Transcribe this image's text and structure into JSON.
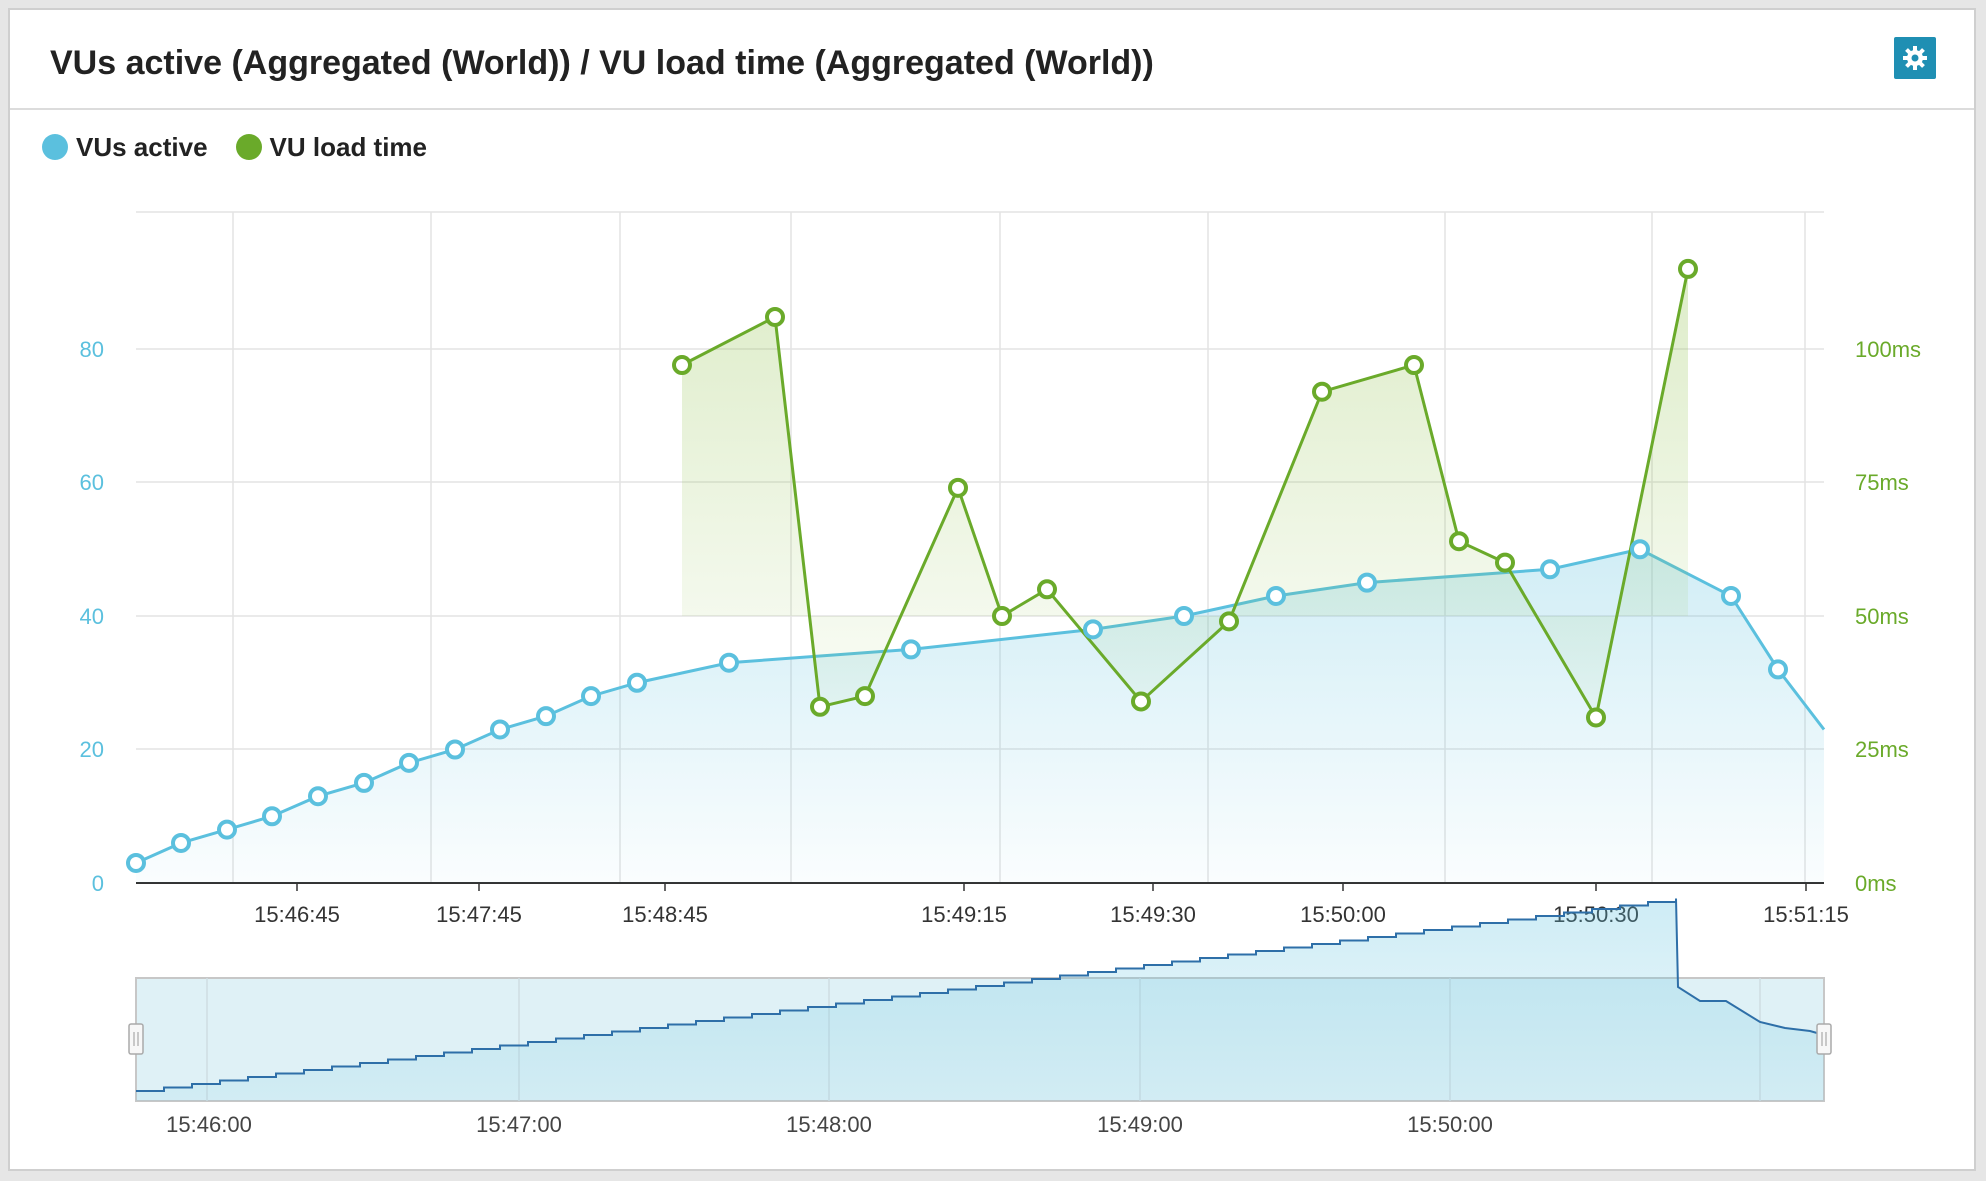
{
  "panel": {
    "title": "VUs active (Aggregated (World)) / VU load time (Aggregated (World))",
    "settings_icon": "gear-icon"
  },
  "legend": [
    {
      "label": "VUs active",
      "color": "#5bc0de"
    },
    {
      "label": "VU load time",
      "color": "#6aaa2a"
    }
  ],
  "chart_data": {
    "type": "line",
    "x_ticks": [
      "15:46:45",
      "15:47:45",
      "15:48:45",
      "15:49:15",
      "15:49:30",
      "15:50:00",
      "15:50:30",
      "15:51:15"
    ],
    "y_left": {
      "ticks": [
        "0",
        "20",
        "40",
        "60",
        "80"
      ],
      "range": [
        0,
        100
      ]
    },
    "y_right": {
      "ticks": [
        "0ms",
        "25ms",
        "50ms",
        "75ms",
        "100ms"
      ],
      "range": [
        0,
        125
      ]
    },
    "series": [
      {
        "name": "VUs active",
        "color": "#5bc0de",
        "axis": "left",
        "values": [
          3,
          6,
          8,
          10,
          13,
          15,
          18,
          20,
          23,
          25,
          28,
          30,
          33,
          35,
          38,
          40,
          43,
          45,
          47,
          50,
          43,
          32
        ]
      },
      {
        "name": "VU load time",
        "color": "#6aaa2a",
        "axis": "right",
        "values": [
          97,
          106,
          33,
          35,
          74,
          50,
          55,
          34,
          49,
          92,
          97,
          64,
          60,
          31,
          115
        ]
      }
    ],
    "grid": true,
    "legend_position": "top-left"
  },
  "navigator": {
    "x_ticks": [
      "15:46:00",
      "15:47:00",
      "15:48:00",
      "15:49:00",
      "15:50:00"
    ]
  }
}
